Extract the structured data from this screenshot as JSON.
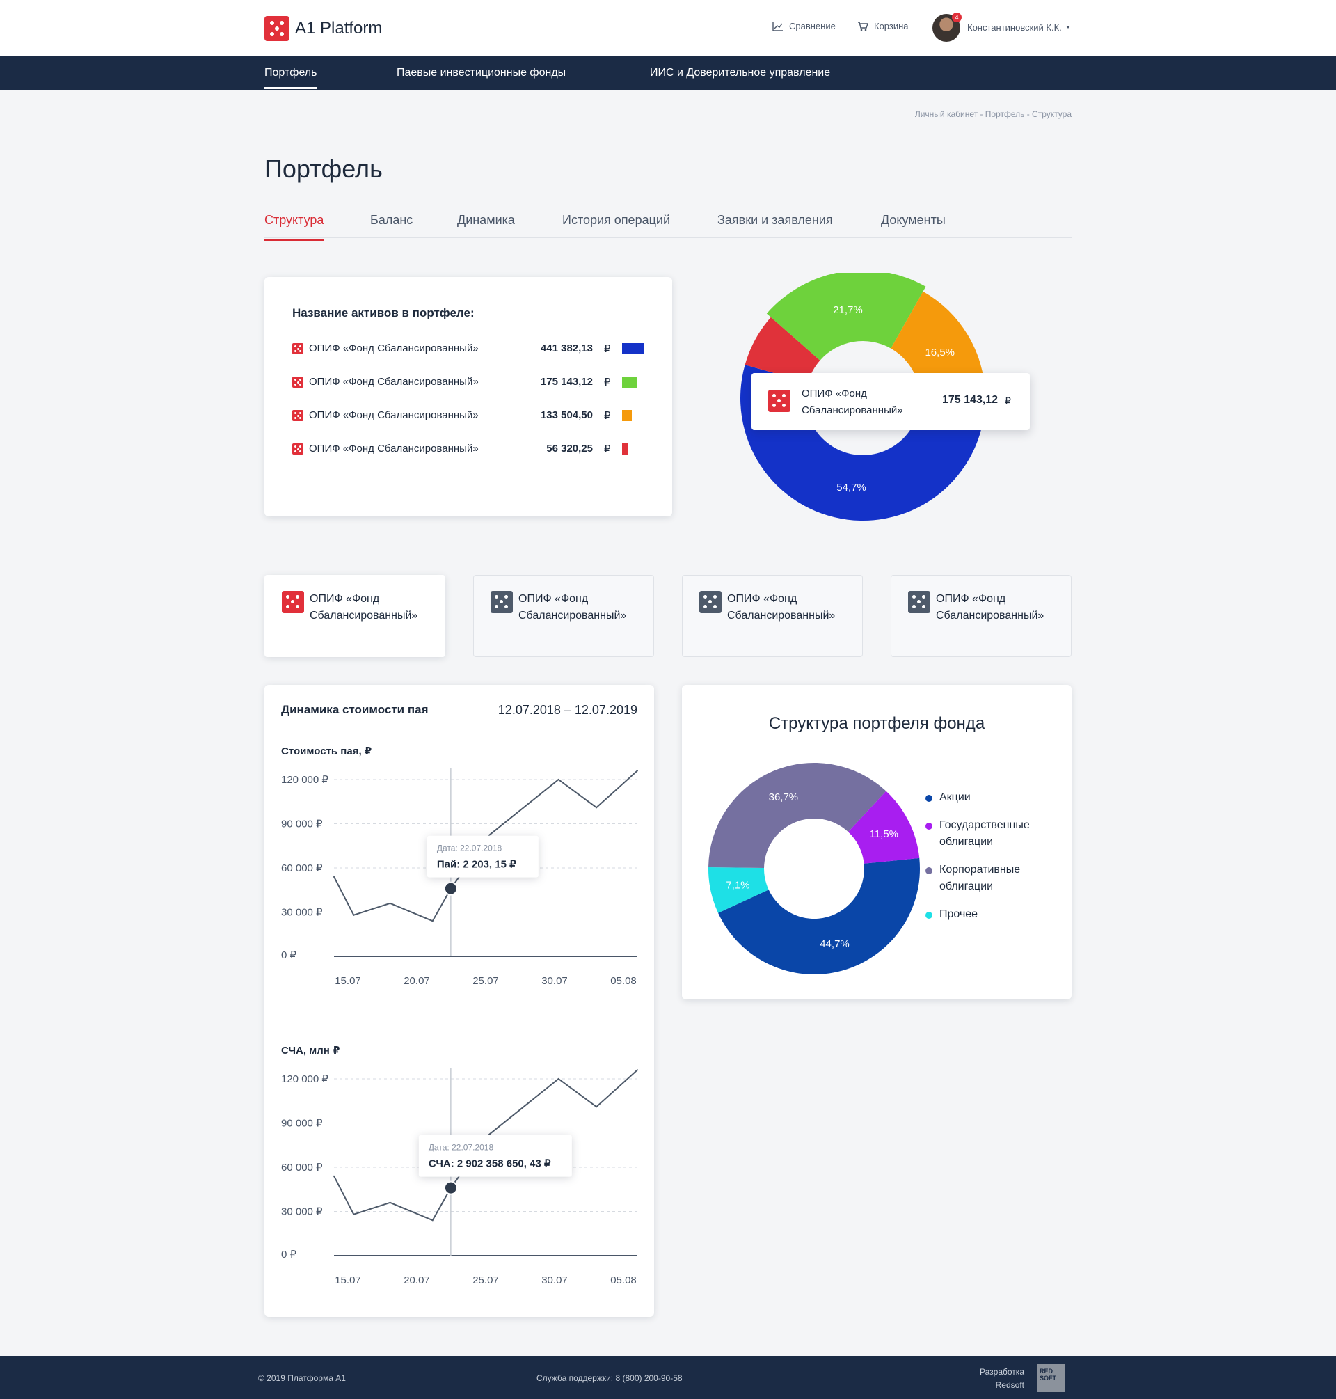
{
  "header": {
    "app_name": "A1 Platform",
    "compare_label": "Сравнение",
    "cart_label": "Корзина",
    "notifications_count": "4",
    "user_name": "Константиновский К.К."
  },
  "nav": {
    "items": [
      {
        "label": "Портфель"
      },
      {
        "label": "Паевые инвестиционные фонды"
      },
      {
        "label": "ИИС и Доверительное управление"
      }
    ]
  },
  "breadcrumb": "Личный кабинет - Портфель - Структура",
  "page_title": "Портфель",
  "tabs": [
    {
      "label": "Структура"
    },
    {
      "label": "Баланс"
    },
    {
      "label": "Динамика"
    },
    {
      "label": "История операций"
    },
    {
      "label": "Заявки и заявления"
    },
    {
      "label": "Документы"
    }
  ],
  "assets": {
    "title": "Название активов в портфеле:",
    "currency": "₽",
    "rows": [
      {
        "name": "ОПИФ «Фонд Сбалансированный»",
        "value": "441 382,13",
        "color": "#1432c8",
        "share": 1.0
      },
      {
        "name": "ОПИФ «Фонд Сбалансированный»",
        "value": "175 143,12",
        "color": "#6ed23c",
        "share": 0.65
      },
      {
        "name": "ОПИФ «Фонд Сбалансированный»",
        "value": "133 504,50",
        "color": "#f59a0c",
        "share": 0.45
      },
      {
        "name": "ОПИФ «Фонд Сбалансированный»",
        "value": "56 320,25",
        "color": "#e0323a",
        "share": 0.25
      }
    ]
  },
  "portfolio_donut": {
    "slices": [
      {
        "label": "54,7%",
        "value": 54.7,
        "color": "#1432c8"
      },
      {
        "label": "",
        "value": 7.1,
        "color": "#e0323a"
      },
      {
        "label": "21,7%",
        "value": 21.7,
        "color": "#6ed23c"
      },
      {
        "label": "16,5%",
        "value": 16.5,
        "color": "#f59a0c"
      }
    ],
    "tooltip": {
      "name": "ОПИФ «Фонд Сбалансированный»",
      "value": "175 143,12",
      "currency": "₽"
    }
  },
  "fund_cards": [
    {
      "name": "ОПИФ «Фонд Сбалансированный»"
    },
    {
      "name": "ОПИФ «Фонд Сбалансированный»"
    },
    {
      "name": "ОПИФ «Фонд Сбалансированный»"
    },
    {
      "name": "ОПИФ «Фонд Сбалансированный»"
    }
  ],
  "dynamics": {
    "title": "Динамика стоимости пая",
    "range": "12.07.2018 – 12.07.2019"
  },
  "chart_data": [
    {
      "type": "line",
      "title": "Стоимость пая, ₽",
      "x_labels": [
        "15.07",
        "20.07",
        "25.07",
        "30.07",
        "05.08"
      ],
      "y_ticks": [
        "120 000 ₽",
        "90 000 ₽",
        "60 000 ₽",
        "30 000 ₽",
        "0 ₽"
      ],
      "y_tick_values": [
        120000,
        90000,
        60000,
        30000,
        0
      ],
      "ylim": [
        0,
        120000
      ],
      "x": [
        0,
        1.3,
        3.7,
        6.5,
        7.7,
        10.2,
        14.8,
        17.3,
        20.0
      ],
      "y": [
        54000,
        28000,
        36000,
        24000,
        46000,
        82000,
        120000,
        101000,
        126000
      ],
      "tooltip": {
        "date": "Дата: 22.07.2018",
        "text": "Пай: 2 203, 15 ₽"
      },
      "highlight_index": 4
    },
    {
      "type": "line",
      "title": "СЧА, млн ₽",
      "x_labels": [
        "15.07",
        "20.07",
        "25.07",
        "30.07",
        "05.08"
      ],
      "y_ticks": [
        "120 000 ₽",
        "90 000 ₽",
        "60 000 ₽",
        "30 000 ₽",
        "0 ₽"
      ],
      "y_tick_values": [
        120000,
        90000,
        60000,
        30000,
        0
      ],
      "ylim": [
        0,
        120000
      ],
      "x": [
        0,
        1.3,
        3.7,
        6.5,
        7.7,
        10.2,
        14.8,
        17.3,
        20.0
      ],
      "y": [
        54000,
        28000,
        36000,
        24000,
        46000,
        82000,
        120000,
        101000,
        126000
      ],
      "tooltip": {
        "date": "Дата: 22.07.2018",
        "text": "СЧА: 2 902 358 650, 43 ₽"
      },
      "highlight_index": 4
    },
    {
      "type": "pie",
      "title": "Структура портфеля фонда",
      "slices": [
        {
          "name": "Акции",
          "label": "44,7%",
          "value": 44.7,
          "color": "#0a46a8"
        },
        {
          "name": "Прочее",
          "label": "7,1%",
          "value": 7.1,
          "color": "#1ee0e6"
        },
        {
          "name": "Корпоративные облигации",
          "label": "36,7%",
          "value": 36.7,
          "color": "#7570a0"
        },
        {
          "name": "Государственные облигации",
          "label": "11,5%",
          "value": 11.5,
          "color": "#a81ef0"
        }
      ],
      "legend": [
        {
          "name": "Акции",
          "color": "#0a46a8"
        },
        {
          "name": "Государственные облигации",
          "color": "#a81ef0"
        },
        {
          "name": "Корпоративные облигации",
          "color": "#7570a0"
        },
        {
          "name": "Прочее",
          "color": "#1ee0e6"
        }
      ]
    }
  ],
  "footer": {
    "copyright": "© 2019  Платформа А1",
    "support": "Служба поддержки:   8 (800) 200-90-58",
    "dev_line1": "Разработка",
    "dev_line2": "Redsoft",
    "dev_logo": "RED SOFT"
  }
}
